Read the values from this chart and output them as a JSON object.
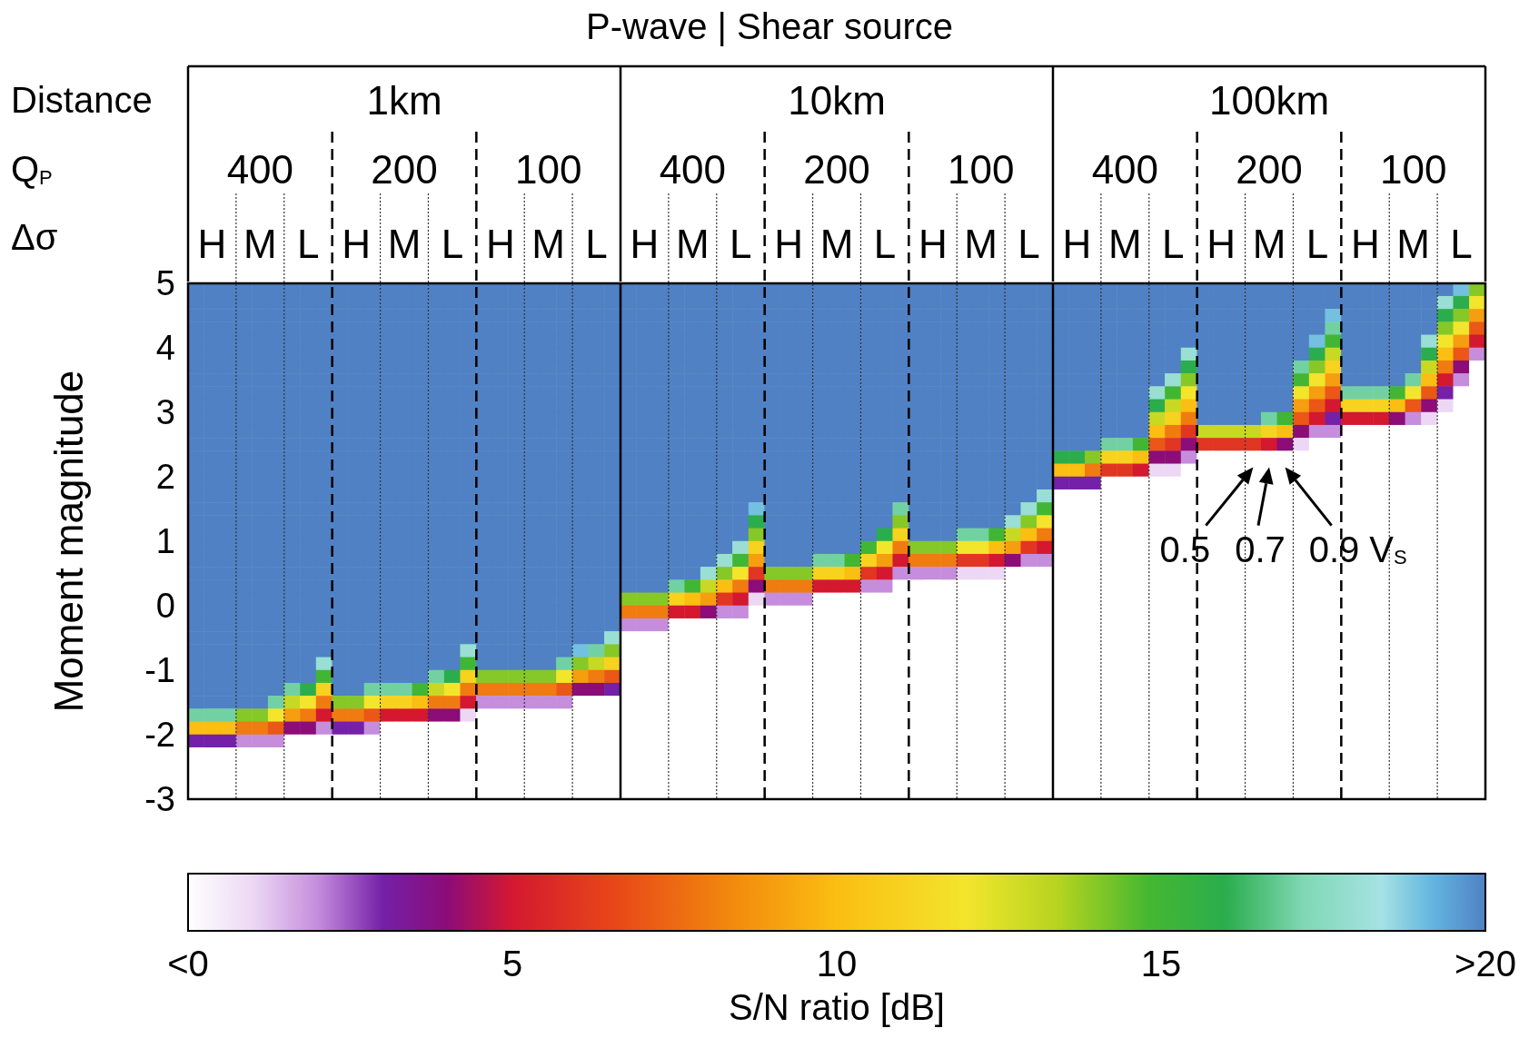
{
  "chart_data": {
    "type": "heatmap",
    "title": "P-wave | Shear source",
    "ylabel": "Moment magnitude",
    "clabel": "S/N ratio [dB]",
    "annotations": [
      "Distance",
      "Q$_{P}$",
      "Δσ",
      "1km",
      "10km",
      "100km",
      "400",
      "200",
      "100",
      "400",
      "200",
      "100",
      "400",
      "200",
      "100",
      "0.5",
      "0.7",
      "0.9 V$_{S}$"
    ],
    "categories": [
      null,
      "H",
      null,
      null,
      "M",
      null,
      null,
      "L",
      null,
      null,
      "H",
      null,
      null,
      "M",
      null,
      null,
      "L",
      null,
      null,
      "H",
      null,
      null,
      "M",
      null,
      null,
      "L",
      null,
      null,
      "H",
      null,
      null,
      "M",
      null,
      null,
      "L",
      null,
      null,
      "H",
      null,
      null,
      "M",
      null,
      null,
      "L",
      null,
      null,
      "H",
      null,
      null,
      "M",
      null,
      null,
      "L",
      null,
      null,
      "H",
      null,
      null,
      "M",
      null,
      null,
      "L",
      null,
      null,
      "H",
      null,
      null,
      "M",
      null,
      null,
      "L",
      null,
      null,
      "H",
      null,
      null,
      "M",
      null,
      null,
      "L",
      null
    ],
    "ylim": [
      -3,
      5
    ],
    "yticks": [
      -3,
      -2,
      -1,
      0,
      1,
      2,
      3,
      4,
      5
    ],
    "grid": "y",
    "clim": [
      0,
      20
    ],
    "cticks": [
      {
        "value": 0,
        "label": "<0"
      },
      5,
      10,
      15,
      {
        "value": 20,
        "label": ">20"
      }
    ],
    "cells": [
      [
        20,
        20,
        20,
        20,
        20,
        20,
        20,
        20,
        20,
        20,
        20,
        20,
        20,
        20,
        20,
        20,
        20,
        20,
        20,
        20,
        20,
        20,
        20,
        20,
        20,
        20,
        20,
        20,
        20,
        20,
        20,
        20,
        20,
        20,
        20,
        20,
        20,
        20,
        20,
        20,
        20,
        20,
        20,
        20,
        20,
        20,
        20,
        20,
        20,
        20,
        20,
        20,
        20,
        20,
        20,
        20,
        20,
        20,
        20,
        20,
        20,
        20,
        20,
        20,
        20,
        20,
        20,
        20,
        20,
        20,
        20,
        20,
        20,
        20,
        20,
        20,
        20,
        20,
        20,
        19,
        14
      ],
      [
        20,
        20,
        20,
        20,
        20,
        20,
        20,
        20,
        20,
        20,
        20,
        20,
        20,
        20,
        20,
        20,
        20,
        20,
        20,
        20,
        20,
        20,
        20,
        20,
        20,
        20,
        20,
        20,
        20,
        20,
        20,
        20,
        20,
        20,
        20,
        20,
        20,
        20,
        20,
        20,
        20,
        20,
        20,
        20,
        20,
        20,
        20,
        20,
        20,
        20,
        20,
        20,
        20,
        20,
        20,
        20,
        20,
        20,
        20,
        20,
        20,
        20,
        20,
        20,
        20,
        20,
        20,
        20,
        20,
        20,
        20,
        20,
        20,
        20,
        20,
        20,
        20,
        20,
        18,
        16,
        12
      ],
      [
        20,
        20,
        20,
        20,
        20,
        20,
        20,
        20,
        20,
        20,
        20,
        20,
        20,
        20,
        20,
        20,
        20,
        20,
        20,
        20,
        20,
        20,
        20,
        20,
        20,
        20,
        20,
        20,
        20,
        20,
        20,
        20,
        20,
        20,
        20,
        20,
        20,
        20,
        20,
        20,
        20,
        20,
        20,
        20,
        20,
        20,
        20,
        20,
        20,
        20,
        20,
        20,
        20,
        20,
        20,
        20,
        20,
        20,
        20,
        20,
        20,
        20,
        20,
        20,
        20,
        20,
        20,
        20,
        20,
        20,
        20,
        19,
        20,
        20,
        20,
        20,
        20,
        20,
        16,
        14,
        9
      ],
      [
        20,
        20,
        20,
        20,
        20,
        20,
        20,
        20,
        20,
        20,
        20,
        20,
        20,
        20,
        20,
        20,
        20,
        20,
        20,
        20,
        20,
        20,
        20,
        20,
        20,
        20,
        20,
        20,
        20,
        20,
        20,
        20,
        20,
        20,
        20,
        20,
        20,
        20,
        20,
        20,
        20,
        20,
        20,
        20,
        20,
        20,
        20,
        20,
        20,
        20,
        20,
        20,
        20,
        20,
        20,
        20,
        20,
        20,
        20,
        20,
        20,
        20,
        20,
        20,
        20,
        20,
        20,
        20,
        20,
        20,
        20,
        17,
        20,
        20,
        20,
        20,
        20,
        20,
        14,
        12,
        7
      ],
      [
        20,
        20,
        20,
        20,
        20,
        20,
        20,
        20,
        20,
        20,
        20,
        20,
        20,
        20,
        20,
        20,
        20,
        20,
        20,
        20,
        20,
        20,
        20,
        20,
        20,
        20,
        20,
        20,
        20,
        20,
        20,
        20,
        20,
        20,
        20,
        20,
        20,
        20,
        20,
        20,
        20,
        20,
        20,
        20,
        20,
        20,
        20,
        20,
        20,
        20,
        20,
        20,
        20,
        20,
        20,
        20,
        20,
        20,
        20,
        20,
        20,
        20,
        20,
        20,
        20,
        20,
        20,
        20,
        20,
        20,
        19,
        15,
        20,
        20,
        20,
        20,
        20,
        18,
        12,
        9,
        5
      ],
      [
        20,
        20,
        20,
        20,
        20,
        20,
        20,
        20,
        20,
        20,
        20,
        20,
        20,
        20,
        20,
        20,
        20,
        20,
        20,
        20,
        20,
        20,
        20,
        20,
        20,
        20,
        20,
        20,
        20,
        20,
        20,
        20,
        20,
        20,
        20,
        20,
        20,
        20,
        20,
        20,
        20,
        20,
        20,
        20,
        20,
        20,
        20,
        20,
        20,
        20,
        20,
        20,
        20,
        20,
        20,
        20,
        20,
        20,
        20,
        20,
        20,
        20,
        18,
        20,
        20,
        20,
        20,
        20,
        20,
        20,
        16,
        13,
        20,
        20,
        20,
        20,
        20,
        16,
        10,
        7,
        2
      ],
      [
        20,
        20,
        20,
        20,
        20,
        20,
        20,
        20,
        20,
        20,
        20,
        20,
        20,
        20,
        20,
        20,
        20,
        20,
        20,
        20,
        20,
        20,
        20,
        20,
        20,
        20,
        20,
        20,
        20,
        20,
        20,
        20,
        20,
        20,
        20,
        20,
        20,
        20,
        20,
        20,
        20,
        20,
        20,
        20,
        20,
        20,
        20,
        20,
        20,
        20,
        20,
        20,
        20,
        20,
        20,
        20,
        20,
        20,
        20,
        20,
        20,
        20,
        16,
        20,
        20,
        20,
        20,
        20,
        20,
        17,
        14,
        11,
        20,
        20,
        20,
        20,
        20,
        13,
        8,
        4,
        0
      ],
      [
        20,
        20,
        20,
        20,
        20,
        20,
        20,
        20,
        20,
        20,
        20,
        20,
        20,
        20,
        20,
        20,
        20,
        20,
        20,
        20,
        20,
        20,
        20,
        20,
        20,
        20,
        20,
        20,
        20,
        20,
        20,
        20,
        20,
        20,
        20,
        20,
        20,
        20,
        20,
        20,
        20,
        20,
        20,
        20,
        20,
        20,
        20,
        20,
        20,
        20,
        20,
        20,
        20,
        20,
        20,
        20,
        20,
        20,
        20,
        20,
        20,
        18,
        14,
        20,
        20,
        20,
        20,
        20,
        20,
        15,
        12,
        9,
        20,
        20,
        20,
        20,
        17,
        10,
        5,
        2,
        0
      ],
      [
        20,
        20,
        20,
        20,
        20,
        20,
        20,
        20,
        20,
        20,
        20,
        20,
        20,
        20,
        20,
        20,
        20,
        20,
        20,
        20,
        20,
        20,
        20,
        20,
        20,
        20,
        20,
        20,
        20,
        20,
        20,
        20,
        20,
        20,
        20,
        20,
        20,
        20,
        20,
        20,
        20,
        20,
        20,
        20,
        20,
        20,
        20,
        20,
        20,
        20,
        20,
        20,
        20,
        20,
        20,
        20,
        20,
        20,
        20,
        20,
        18,
        15,
        12,
        20,
        20,
        20,
        20,
        20,
        20,
        12,
        9,
        7,
        17,
        17,
        17,
        15,
        12,
        7,
        3,
        0,
        0
      ],
      [
        20,
        20,
        20,
        20,
        20,
        20,
        20,
        20,
        20,
        20,
        20,
        20,
        20,
        20,
        20,
        20,
        20,
        20,
        20,
        20,
        20,
        20,
        20,
        20,
        20,
        20,
        20,
        20,
        20,
        20,
        20,
        20,
        20,
        20,
        20,
        20,
        20,
        20,
        20,
        20,
        20,
        20,
        20,
        20,
        20,
        20,
        20,
        20,
        20,
        20,
        20,
        20,
        20,
        20,
        20,
        20,
        20,
        20,
        20,
        20,
        16,
        13,
        10,
        20,
        20,
        20,
        20,
        20,
        20,
        9,
        7,
        5,
        11,
        11,
        11,
        10,
        7,
        4,
        1,
        0,
        0
      ],
      [
        20,
        20,
        20,
        20,
        20,
        20,
        20,
        20,
        20,
        20,
        20,
        20,
        20,
        20,
        20,
        20,
        20,
        20,
        20,
        20,
        20,
        20,
        20,
        20,
        20,
        20,
        20,
        20,
        20,
        20,
        20,
        20,
        20,
        20,
        20,
        20,
        20,
        20,
        20,
        20,
        20,
        20,
        20,
        20,
        20,
        20,
        20,
        20,
        20,
        20,
        20,
        20,
        20,
        20,
        20,
        20,
        20,
        20,
        20,
        20,
        13,
        11,
        8,
        20,
        20,
        20,
        20,
        17,
        15,
        7,
        5,
        3,
        5,
        5,
        5,
        4,
        2,
        1,
        0,
        0,
        0
      ],
      [
        20,
        20,
        20,
        20,
        20,
        20,
        20,
        20,
        20,
        20,
        20,
        20,
        20,
        20,
        20,
        20,
        20,
        20,
        20,
        20,
        20,
        20,
        20,
        20,
        20,
        20,
        20,
        20,
        20,
        20,
        20,
        20,
        20,
        20,
        20,
        20,
        20,
        20,
        20,
        20,
        20,
        20,
        20,
        20,
        20,
        20,
        20,
        20,
        20,
        20,
        20,
        20,
        20,
        20,
        20,
        20,
        20,
        20,
        20,
        20,
        10,
        8,
        6,
        13,
        13,
        13,
        13,
        11,
        10,
        4,
        2,
        2,
        0,
        0,
        0,
        0,
        0,
        0,
        0,
        0,
        0
      ],
      [
        20,
        20,
        20,
        20,
        20,
        20,
        20,
        20,
        20,
        20,
        20,
        20,
        20,
        20,
        20,
        20,
        20,
        20,
        20,
        20,
        20,
        20,
        20,
        20,
        20,
        20,
        20,
        20,
        20,
        20,
        20,
        20,
        20,
        20,
        20,
        20,
        20,
        20,
        20,
        20,
        20,
        20,
        20,
        20,
        20,
        20,
        20,
        20,
        20,
        20,
        20,
        20,
        20,
        20,
        20,
        20,
        20,
        17,
        17,
        15,
        7,
        6,
        4,
        6,
        6,
        6,
        6,
        5,
        4,
        1,
        0,
        0,
        0,
        0,
        0,
        0,
        0,
        0,
        0,
        0,
        0
      ],
      [
        20,
        20,
        20,
        20,
        20,
        20,
        20,
        20,
        20,
        20,
        20,
        20,
        20,
        20,
        20,
        20,
        20,
        20,
        20,
        20,
        20,
        20,
        20,
        20,
        20,
        20,
        20,
        20,
        20,
        20,
        20,
        20,
        20,
        20,
        20,
        20,
        20,
        20,
        20,
        20,
        20,
        20,
        20,
        20,
        20,
        20,
        20,
        20,
        20,
        20,
        20,
        20,
        20,
        20,
        16,
        16,
        14,
        11,
        11,
        10,
        4,
        4,
        2,
        0,
        0,
        0,
        0,
        0,
        0,
        0,
        0,
        0,
        0,
        0,
        0,
        0,
        0,
        0,
        0,
        0,
        0
      ],
      [
        20,
        20,
        20,
        20,
        20,
        20,
        20,
        20,
        20,
        20,
        20,
        20,
        20,
        20,
        20,
        20,
        20,
        20,
        20,
        20,
        20,
        20,
        20,
        20,
        20,
        20,
        20,
        20,
        20,
        20,
        20,
        20,
        20,
        20,
        20,
        20,
        20,
        20,
        20,
        20,
        20,
        20,
        20,
        20,
        20,
        20,
        20,
        20,
        20,
        20,
        20,
        20,
        20,
        20,
        10,
        10,
        8,
        6,
        6,
        5,
        1,
        1,
        0,
        0,
        0,
        0,
        0,
        0,
        0,
        0,
        0,
        0,
        0,
        0,
        0,
        0,
        0,
        0,
        0,
        0,
        0
      ],
      [
        20,
        20,
        20,
        20,
        20,
        20,
        20,
        20,
        20,
        20,
        20,
        20,
        20,
        20,
        20,
        20,
        20,
        20,
        20,
        20,
        20,
        20,
        20,
        20,
        20,
        20,
        20,
        20,
        20,
        20,
        20,
        20,
        20,
        20,
        20,
        20,
        20,
        20,
        20,
        20,
        20,
        20,
        20,
        20,
        20,
        20,
        20,
        20,
        20,
        20,
        20,
        20,
        20,
        20,
        3,
        3,
        3,
        0,
        0,
        0,
        0,
        0,
        0,
        0,
        0,
        0,
        0,
        0,
        0,
        0,
        0,
        0,
        0,
        0,
        0,
        0,
        0,
        0,
        0,
        0,
        0
      ],
      [
        20,
        20,
        20,
        20,
        20,
        20,
        20,
        20,
        20,
        20,
        20,
        20,
        20,
        20,
        20,
        20,
        20,
        20,
        20,
        20,
        20,
        20,
        20,
        20,
        20,
        20,
        20,
        20,
        20,
        20,
        20,
        20,
        20,
        20,
        20,
        20,
        20,
        20,
        20,
        20,
        20,
        20,
        20,
        20,
        20,
        20,
        20,
        20,
        20,
        20,
        20,
        20,
        20,
        18,
        0,
        0,
        0,
        0,
        0,
        0,
        0,
        0,
        0,
        0,
        0,
        0,
        0,
        0,
        0,
        0,
        0,
        0,
        0,
        0,
        0,
        0,
        0,
        0,
        0,
        0,
        0
      ],
      [
        20,
        20,
        20,
        20,
        20,
        20,
        20,
        20,
        20,
        20,
        20,
        20,
        20,
        20,
        20,
        20,
        20,
        20,
        20,
        20,
        20,
        20,
        20,
        20,
        20,
        20,
        20,
        20,
        20,
        20,
        20,
        20,
        20,
        20,
        20,
        19,
        20,
        20,
        20,
        20,
        20,
        20,
        20,
        20,
        17,
        20,
        20,
        20,
        20,
        20,
        20,
        20,
        18,
        15,
        0,
        0,
        0,
        0,
        0,
        0,
        0,
        0,
        0,
        0,
        0,
        0,
        0,
        0,
        0,
        0,
        0,
        0,
        0,
        0,
        0,
        0,
        0,
        0,
        0,
        0,
        0
      ],
      [
        20,
        20,
        20,
        20,
        20,
        20,
        20,
        20,
        20,
        20,
        20,
        20,
        20,
        20,
        20,
        20,
        20,
        20,
        20,
        20,
        20,
        20,
        20,
        20,
        20,
        20,
        20,
        20,
        20,
        20,
        20,
        20,
        20,
        20,
        20,
        16,
        20,
        20,
        20,
        20,
        20,
        20,
        20,
        20,
        14,
        20,
        20,
        20,
        20,
        20,
        20,
        18,
        14,
        12,
        0,
        0,
        0,
        0,
        0,
        0,
        0,
        0,
        0,
        0,
        0,
        0,
        0,
        0,
        0,
        0,
        0,
        0,
        0,
        0,
        0,
        0,
        0,
        0,
        0,
        0,
        0
      ],
      [
        20,
        20,
        20,
        20,
        20,
        20,
        20,
        20,
        20,
        20,
        20,
        20,
        20,
        20,
        20,
        20,
        20,
        20,
        20,
        20,
        20,
        20,
        20,
        20,
        20,
        20,
        20,
        20,
        20,
        20,
        20,
        20,
        20,
        20,
        20,
        14,
        20,
        20,
        20,
        20,
        20,
        20,
        20,
        16,
        11,
        20,
        20,
        20,
        17,
        17,
        15,
        13,
        10,
        8,
        0,
        0,
        0,
        0,
        0,
        0,
        0,
        0,
        0,
        0,
        0,
        0,
        0,
        0,
        0,
        0,
        0,
        0,
        0,
        0,
        0,
        0,
        0,
        0,
        0,
        0,
        0
      ],
      [
        20,
        20,
        20,
        20,
        20,
        20,
        20,
        20,
        20,
        20,
        20,
        20,
        20,
        20,
        20,
        20,
        20,
        20,
        20,
        20,
        20,
        20,
        20,
        20,
        20,
        20,
        20,
        20,
        20,
        20,
        20,
        20,
        20,
        20,
        18,
        11,
        20,
        20,
        20,
        20,
        20,
        20,
        15,
        12,
        8,
        14,
        14,
        14,
        12,
        12,
        10,
        9,
        6,
        5,
        0,
        0,
        0,
        0,
        0,
        0,
        0,
        0,
        0,
        0,
        0,
        0,
        0,
        0,
        0,
        0,
        0,
        0,
        0,
        0,
        0,
        0,
        0,
        0,
        0,
        0,
        0
      ],
      [
        20,
        20,
        20,
        20,
        20,
        20,
        20,
        20,
        20,
        20,
        20,
        20,
        20,
        20,
        20,
        20,
        20,
        20,
        20,
        20,
        20,
        20,
        20,
        20,
        20,
        20,
        20,
        20,
        20,
        20,
        20,
        20,
        20,
        18,
        15,
        9,
        20,
        20,
        20,
        17,
        17,
        15,
        11,
        9,
        5,
        8,
        8,
        8,
        6,
        6,
        5,
        4,
        2,
        2,
        0,
        0,
        0,
        0,
        0,
        0,
        0,
        0,
        0,
        0,
        0,
        0,
        0,
        0,
        0,
        0,
        0,
        0,
        0,
        0,
        0,
        0,
        0,
        0,
        0,
        0,
        0
      ],
      [
        20,
        20,
        20,
        20,
        20,
        20,
        20,
        20,
        20,
        20,
        20,
        20,
        20,
        20,
        20,
        20,
        20,
        20,
        20,
        20,
        20,
        20,
        20,
        20,
        20,
        20,
        20,
        20,
        20,
        20,
        20,
        20,
        18,
        14,
        12,
        6,
        14,
        14,
        14,
        11,
        11,
        10,
        6,
        5,
        2,
        2,
        2,
        2,
        1,
        1,
        1,
        0,
        0,
        0,
        0,
        0,
        0,
        0,
        0,
        0,
        0,
        0,
        0,
        0,
        0,
        0,
        0,
        0,
        0,
        0,
        0,
        0,
        0,
        0,
        0,
        0,
        0,
        0,
        0,
        0,
        0
      ],
      [
        20,
        20,
        20,
        20,
        20,
        20,
        20,
        20,
        20,
        20,
        20,
        20,
        20,
        20,
        20,
        20,
        20,
        20,
        20,
        20,
        20,
        20,
        20,
        20,
        20,
        20,
        20,
        20,
        20,
        20,
        17,
        15,
        13,
        10,
        8,
        4,
        8,
        8,
        8,
        5,
        5,
        5,
        2,
        2,
        0,
        0,
        0,
        0,
        0,
        0,
        0,
        0,
        0,
        0,
        0,
        0,
        0,
        0,
        0,
        0,
        0,
        0,
        0,
        0,
        0,
        0,
        0,
        0,
        0,
        0,
        0,
        0,
        0,
        0,
        0,
        0,
        0,
        0,
        0,
        0,
        0
      ],
      [
        20,
        20,
        20,
        20,
        20,
        20,
        20,
        20,
        20,
        20,
        20,
        20,
        20,
        20,
        20,
        20,
        20,
        20,
        20,
        20,
        20,
        20,
        20,
        20,
        20,
        20,
        20,
        14,
        14,
        14,
        11,
        10,
        9,
        6,
        5,
        1,
        2,
        2,
        2,
        0,
        0,
        0,
        0,
        0,
        0,
        0,
        0,
        0,
        0,
        0,
        0,
        0,
        0,
        0,
        0,
        0,
        0,
        0,
        0,
        0,
        0,
        0,
        0,
        0,
        0,
        0,
        0,
        0,
        0,
        0,
        0,
        0,
        0,
        0,
        0,
        0,
        0,
        0,
        0,
        0,
        0
      ],
      [
        20,
        20,
        20,
        20,
        20,
        20,
        20,
        20,
        20,
        20,
        20,
        20,
        20,
        20,
        20,
        20,
        20,
        20,
        20,
        20,
        20,
        20,
        20,
        20,
        20,
        20,
        20,
        8,
        8,
        8,
        5,
        5,
        4,
        2,
        2,
        0,
        0,
        0,
        0,
        0,
        0,
        0,
        0,
        0,
        0,
        0,
        0,
        0,
        0,
        0,
        0,
        0,
        0,
        0,
        0,
        0,
        0,
        0,
        0,
        0,
        0,
        0,
        0,
        0,
        0,
        0,
        0,
        0,
        0,
        0,
        0,
        0,
        0,
        0,
        0,
        0,
        0,
        0,
        0,
        0,
        0
      ],
      [
        20,
        20,
        20,
        20,
        20,
        20,
        20,
        20,
        20,
        20,
        20,
        20,
        20,
        20,
        20,
        20,
        20,
        20,
        20,
        20,
        20,
        20,
        20,
        20,
        20,
        20,
        20,
        2,
        2,
        2,
        0,
        0,
        0,
        0,
        0,
        0,
        0,
        0,
        0,
        0,
        0,
        0,
        0,
        0,
        0,
        0,
        0,
        0,
        0,
        0,
        0,
        0,
        0,
        0,
        0,
        0,
        0,
        0,
        0,
        0,
        0,
        0,
        0,
        0,
        0,
        0,
        0,
        0,
        0,
        0,
        0,
        0,
        0,
        0,
        0,
        0,
        0,
        0,
        0,
        0,
        0
      ],
      [
        20,
        20,
        20,
        20,
        20,
        20,
        20,
        20,
        20,
        20,
        20,
        20,
        20,
        20,
        20,
        20,
        20,
        20,
        20,
        20,
        20,
        20,
        20,
        20,
        20,
        20,
        18,
        0,
        0,
        0,
        0,
        0,
        0,
        0,
        0,
        0,
        0,
        0,
        0,
        0,
        0,
        0,
        0,
        0,
        0,
        0,
        0,
        0,
        0,
        0,
        0,
        0,
        0,
        0,
        0,
        0,
        0,
        0,
        0,
        0,
        0,
        0,
        0,
        0,
        0,
        0,
        0,
        0,
        0,
        0,
        0,
        0,
        0,
        0,
        0,
        0,
        0,
        0,
        0,
        0,
        0
      ],
      [
        20,
        20,
        20,
        20,
        20,
        20,
        20,
        20,
        20,
        20,
        20,
        20,
        20,
        20,
        20,
        20,
        20,
        18,
        20,
        20,
        20,
        20,
        20,
        20,
        19,
        17,
        14,
        0,
        0,
        0,
        0,
        0,
        0,
        0,
        0,
        0,
        0,
        0,
        0,
        0,
        0,
        0,
        0,
        0,
        0,
        0,
        0,
        0,
        0,
        0,
        0,
        0,
        0,
        0,
        0,
        0,
        0,
        0,
        0,
        0,
        0,
        0,
        0,
        0,
        0,
        0,
        0,
        0,
        0,
        0,
        0,
        0,
        0,
        0,
        0,
        0,
        0,
        0,
        0,
        0,
        0
      ],
      [
        20,
        20,
        20,
        20,
        20,
        20,
        20,
        20,
        18,
        20,
        20,
        20,
        20,
        20,
        20,
        20,
        20,
        15,
        20,
        20,
        20,
        20,
        20,
        17,
        14,
        13,
        11,
        0,
        0,
        0,
        0,
        0,
        0,
        0,
        0,
        0,
        0,
        0,
        0,
        0,
        0,
        0,
        0,
        0,
        0,
        0,
        0,
        0,
        0,
        0,
        0,
        0,
        0,
        0,
        0,
        0,
        0,
        0,
        0,
        0,
        0,
        0,
        0,
        0,
        0,
        0,
        0,
        0,
        0,
        0,
        0,
        0,
        0,
        0,
        0,
        0,
        0,
        0,
        0,
        0,
        0
      ],
      [
        20,
        20,
        20,
        20,
        20,
        20,
        20,
        20,
        15,
        20,
        20,
        20,
        20,
        20,
        20,
        17,
        16,
        11,
        14,
        14,
        14,
        14,
        14,
        12,
        9,
        8,
        7,
        0,
        0,
        0,
        0,
        0,
        0,
        0,
        0,
        0,
        0,
        0,
        0,
        0,
        0,
        0,
        0,
        0,
        0,
        0,
        0,
        0,
        0,
        0,
        0,
        0,
        0,
        0,
        0,
        0,
        0,
        0,
        0,
        0,
        0,
        0,
        0,
        0,
        0,
        0,
        0,
        0,
        0,
        0,
        0,
        0,
        0,
        0,
        0,
        0,
        0,
        0,
        0,
        0,
        0
      ],
      [
        20,
        20,
        20,
        20,
        20,
        20,
        17,
        16,
        11,
        20,
        20,
        17,
        17,
        17,
        15,
        13,
        12,
        8,
        8,
        8,
        8,
        8,
        8,
        7,
        4,
        4,
        3,
        0,
        0,
        0,
        0,
        0,
        0,
        0,
        0,
        0,
        0,
        0,
        0,
        0,
        0,
        0,
        0,
        0,
        0,
        0,
        0,
        0,
        0,
        0,
        0,
        0,
        0,
        0,
        0,
        0,
        0,
        0,
        0,
        0,
        0,
        0,
        0,
        0,
        0,
        0,
        0,
        0,
        0,
        0,
        0,
        0,
        0,
        0,
        0,
        0,
        0,
        0,
        0,
        0,
        0
      ],
      [
        20,
        20,
        20,
        20,
        20,
        17,
        13,
        12,
        8,
        14,
        14,
        12,
        11,
        11,
        10,
        8,
        8,
        5,
        2,
        2,
        2,
        2,
        2,
        2,
        0,
        0,
        0,
        0,
        0,
        0,
        0,
        0,
        0,
        0,
        0,
        0,
        0,
        0,
        0,
        0,
        0,
        0,
        0,
        0,
        0,
        0,
        0,
        0,
        0,
        0,
        0,
        0,
        0,
        0,
        0,
        0,
        0,
        0,
        0,
        0,
        0,
        0,
        0,
        0,
        0,
        0,
        0,
        0,
        0,
        0,
        0,
        0,
        0,
        0,
        0,
        0,
        0,
        0,
        0,
        0,
        0
      ],
      [
        17,
        17,
        17,
        14,
        14,
        12,
        9,
        8,
        5,
        8,
        8,
        7,
        5,
        5,
        5,
        4,
        4,
        1,
        0,
        0,
        0,
        0,
        0,
        0,
        0,
        0,
        0,
        0,
        0,
        0,
        0,
        0,
        0,
        0,
        0,
        0,
        0,
        0,
        0,
        0,
        0,
        0,
        0,
        0,
        0,
        0,
        0,
        0,
        0,
        0,
        0,
        0,
        0,
        0,
        0,
        0,
        0,
        0,
        0,
        0,
        0,
        0,
        0,
        0,
        0,
        0,
        0,
        0,
        0,
        0,
        0,
        0,
        0,
        0,
        0,
        0,
        0,
        0,
        0,
        0,
        0
      ],
      [
        10,
        10,
        10,
        8,
        8,
        7,
        4,
        4,
        2,
        3,
        3,
        2,
        0,
        0,
        0,
        0,
        0,
        0,
        0,
        0,
        0,
        0,
        0,
        0,
        0,
        0,
        0,
        0,
        0,
        0,
        0,
        0,
        0,
        0,
        0,
        0,
        0,
        0,
        0,
        0,
        0,
        0,
        0,
        0,
        0,
        0,
        0,
        0,
        0,
        0,
        0,
        0,
        0,
        0,
        0,
        0,
        0,
        0,
        0,
        0,
        0,
        0,
        0,
        0,
        0,
        0,
        0,
        0,
        0,
        0,
        0,
        0,
        0,
        0,
        0,
        0,
        0,
        0,
        0,
        0,
        0
      ],
      [
        3,
        3,
        3,
        2,
        2,
        2,
        0,
        0,
        0,
        0,
        0,
        0,
        0,
        0,
        0,
        0,
        0,
        0,
        0,
        0,
        0,
        0,
        0,
        0,
        0,
        0,
        0,
        0,
        0,
        0,
        0,
        0,
        0,
        0,
        0,
        0,
        0,
        0,
        0,
        0,
        0,
        0,
        0,
        0,
        0,
        0,
        0,
        0,
        0,
        0,
        0,
        0,
        0,
        0,
        0,
        0,
        0,
        0,
        0,
        0,
        0,
        0,
        0,
        0,
        0,
        0,
        0,
        0,
        0,
        0,
        0,
        0,
        0,
        0,
        0,
        0,
        0,
        0,
        0,
        0,
        0
      ],
      [
        0,
        0,
        0,
        0,
        0,
        0,
        0,
        0,
        0,
        0,
        0,
        0,
        0,
        0,
        0,
        0,
        0,
        0,
        0,
        0,
        0,
        0,
        0,
        0,
        0,
        0,
        0,
        0,
        0,
        0,
        0,
        0,
        0,
        0,
        0,
        0,
        0,
        0,
        0,
        0,
        0,
        0,
        0,
        0,
        0,
        0,
        0,
        0,
        0,
        0,
        0,
        0,
        0,
        0,
        0,
        0,
        0,
        0,
        0,
        0,
        0,
        0,
        0,
        0,
        0,
        0,
        0,
        0,
        0,
        0,
        0,
        0,
        0,
        0,
        0,
        0,
        0,
        0,
        0,
        0,
        0
      ],
      [
        0,
        0,
        0,
        0,
        0,
        0,
        0,
        0,
        0,
        0,
        0,
        0,
        0,
        0,
        0,
        0,
        0,
        0,
        0,
        0,
        0,
        0,
        0,
        0,
        0,
        0,
        0,
        0,
        0,
        0,
        0,
        0,
        0,
        0,
        0,
        0,
        0,
        0,
        0,
        0,
        0,
        0,
        0,
        0,
        0,
        0,
        0,
        0,
        0,
        0,
        0,
        0,
        0,
        0,
        0,
        0,
        0,
        0,
        0,
        0,
        0,
        0,
        0,
        0,
        0,
        0,
        0,
        0,
        0,
        0,
        0,
        0,
        0,
        0,
        0,
        0,
        0,
        0,
        0,
        0,
        0
      ],
      [
        0,
        0,
        0,
        0,
        0,
        0,
        0,
        0,
        0,
        0,
        0,
        0,
        0,
        0,
        0,
        0,
        0,
        0,
        0,
        0,
        0,
        0,
        0,
        0,
        0,
        0,
        0,
        0,
        0,
        0,
        0,
        0,
        0,
        0,
        0,
        0,
        0,
        0,
        0,
        0,
        0,
        0,
        0,
        0,
        0,
        0,
        0,
        0,
        0,
        0,
        0,
        0,
        0,
        0,
        0,
        0,
        0,
        0,
        0,
        0,
        0,
        0,
        0,
        0,
        0,
        0,
        0,
        0,
        0,
        0,
        0,
        0,
        0,
        0,
        0,
        0,
        0,
        0,
        0,
        0,
        0
      ],
      [
        0,
        0,
        0,
        0,
        0,
        0,
        0,
        0,
        0,
        0,
        0,
        0,
        0,
        0,
        0,
        0,
        0,
        0,
        0,
        0,
        0,
        0,
        0,
        0,
        0,
        0,
        0,
        0,
        0,
        0,
        0,
        0,
        0,
        0,
        0,
        0,
        0,
        0,
        0,
        0,
        0,
        0,
        0,
        0,
        0,
        0,
        0,
        0,
        0,
        0,
        0,
        0,
        0,
        0,
        0,
        0,
        0,
        0,
        0,
        0,
        0,
        0,
        0,
        0,
        0,
        0,
        0,
        0,
        0,
        0,
        0,
        0,
        0,
        0,
        0,
        0,
        0,
        0,
        0,
        0,
        0
      ]
    ]
  }
}
